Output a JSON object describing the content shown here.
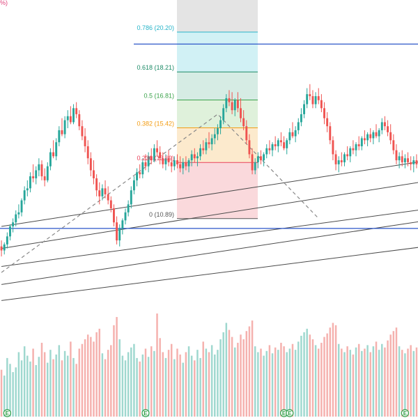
{
  "corner_label": "%)",
  "colors": {
    "up": "#26a69a",
    "down": "#ef5350",
    "up_volume": "#9fd8cf",
    "down_volume": "#f5b1ae",
    "hline": "#2a54c8",
    "channel": "#4a4a4a",
    "dashed": "#888888",
    "earnings": "#2e9e45"
  },
  "chart_data": {
    "type": "candlestick",
    "price_range": [
      6.5,
      21.8
    ],
    "grid": false,
    "fibonacci": {
      "levels": [
        {
          "ratio": "0.786",
          "price": 20.2,
          "label": "0.786 (20.20)",
          "color": "#26b4c8",
          "fill": "#c9eef3"
        },
        {
          "ratio": "0.618",
          "price": 18.21,
          "label": "0.618 (18.21)",
          "color": "#1b8a66",
          "fill": "#cfe9df"
        },
        {
          "ratio": "0.5",
          "price": 16.81,
          "label": "0.5 (16.81)",
          "color": "#3aa24a",
          "fill": "#d9eed5"
        },
        {
          "ratio": "0.382",
          "price": 15.42,
          "label": "0.382 (15.42)",
          "color": "#f39c12",
          "fill": "#fbe6c4"
        },
        {
          "ratio": "0.236",
          "price": 13.69,
          "label": "0.236 (13.69)",
          "color": "#e8415a",
          "fill": "#f9d2d6"
        },
        {
          "ratio": "0",
          "price": 10.89,
          "label": "0 (10.89)",
          "color": "#555555",
          "fill": ""
        }
      ],
      "top_fill_price": 21.8
    },
    "horizontal_lines": [
      {
        "price": 19.6,
        "color": "#2a54c8"
      },
      {
        "price": 10.4,
        "color": "#2a54c8"
      }
    ],
    "dashed_path_prices": [
      {
        "bar": 0,
        "price": 8.2
      },
      {
        "bar": 75,
        "price": 16.1
      },
      {
        "bar": 110,
        "price": 10.9
      }
    ],
    "channel_lines": [
      {
        "bar_start": 0,
        "price_start": 10.5,
        "bar_end": 180,
        "price_end": 14.5
      },
      {
        "bar_start": 0,
        "price_start": 9.4,
        "bar_end": 180,
        "price_end": 13.5
      },
      {
        "bar_start": 0,
        "price_start": 8.5,
        "bar_end": 180,
        "price_end": 12.0
      },
      {
        "bar_start": 0,
        "price_start": 7.6,
        "bar_end": 180,
        "price_end": 11.5
      },
      {
        "bar_start": 0,
        "price_start": 6.8,
        "bar_end": 180,
        "price_end": 10.1
      }
    ],
    "earnings_bars": [
      2,
      50,
      98,
      100,
      140,
      178
    ],
    "earnings_label": "E",
    "ohlcv": [
      [
        9.5,
        9.8,
        9.0,
        9.3,
        40
      ],
      [
        9.3,
        9.7,
        9.1,
        9.6,
        35
      ],
      [
        9.6,
        10.2,
        9.4,
        10.0,
        50
      ],
      [
        10.0,
        10.6,
        9.8,
        10.5,
        45
      ],
      [
        10.5,
        10.9,
        10.2,
        10.7,
        38
      ],
      [
        10.7,
        11.3,
        10.5,
        11.1,
        42
      ],
      [
        11.1,
        11.6,
        10.9,
        11.2,
        55
      ],
      [
        11.2,
        11.9,
        11.0,
        11.8,
        48
      ],
      [
        11.8,
        12.5,
        11.6,
        12.3,
        60
      ],
      [
        12.3,
        12.8,
        12.0,
        12.4,
        52
      ],
      [
        12.4,
        13.2,
        12.2,
        13.0,
        47
      ],
      [
        13.0,
        13.6,
        12.7,
        12.9,
        58
      ],
      [
        12.9,
        13.5,
        12.6,
        13.3,
        44
      ],
      [
        13.3,
        13.9,
        13.0,
        13.6,
        51
      ],
      [
        13.6,
        13.8,
        12.8,
        13.0,
        63
      ],
      [
        13.0,
        13.4,
        12.5,
        12.8,
        55
      ],
      [
        12.8,
        13.7,
        12.7,
        13.5,
        46
      ],
      [
        13.5,
        14.4,
        13.3,
        14.2,
        57
      ],
      [
        14.2,
        14.8,
        13.9,
        14.0,
        49
      ],
      [
        14.0,
        14.9,
        13.8,
        14.7,
        53
      ],
      [
        14.7,
        15.5,
        14.5,
        15.3,
        61
      ],
      [
        15.3,
        15.9,
        15.0,
        15.1,
        48
      ],
      [
        15.1,
        16.0,
        14.9,
        15.8,
        56
      ],
      [
        15.8,
        16.3,
        15.4,
        16.0,
        52
      ],
      [
        16.0,
        16.5,
        15.6,
        15.7,
        64
      ],
      [
        15.7,
        16.6,
        15.6,
        16.4,
        50
      ],
      [
        16.4,
        16.7,
        15.9,
        16.1,
        45
      ],
      [
        16.1,
        16.3,
        15.3,
        15.5,
        58
      ],
      [
        15.5,
        15.8,
        14.8,
        15.0,
        62
      ],
      [
        15.0,
        15.4,
        14.2,
        14.5,
        66
      ],
      [
        14.5,
        14.8,
        13.6,
        13.9,
        70
      ],
      [
        13.9,
        14.2,
        13.0,
        13.3,
        68
      ],
      [
        13.3,
        13.8,
        12.6,
        12.9,
        64
      ],
      [
        12.9,
        13.1,
        12.0,
        12.3,
        72
      ],
      [
        12.3,
        12.7,
        11.6,
        12.0,
        75
      ],
      [
        12.0,
        12.6,
        11.8,
        12.4,
        54
      ],
      [
        12.4,
        12.8,
        11.9,
        12.1,
        49
      ],
      [
        12.1,
        12.5,
        11.6,
        11.8,
        57
      ],
      [
        11.8,
        12.0,
        11.2,
        11.4,
        61
      ],
      [
        11.4,
        11.6,
        10.5,
        10.7,
        78
      ],
      [
        10.7,
        11.0,
        9.6,
        9.8,
        85
      ],
      [
        9.8,
        10.6,
        9.5,
        10.4,
        66
      ],
      [
        10.4,
        10.9,
        10.1,
        10.8,
        52
      ],
      [
        10.8,
        11.4,
        10.6,
        11.2,
        48
      ],
      [
        11.2,
        11.8,
        11.0,
        11.6,
        55
      ],
      [
        11.6,
        12.5,
        11.4,
        12.3,
        59
      ],
      [
        12.3,
        13.0,
        12.1,
        12.8,
        62
      ],
      [
        12.8,
        13.4,
        12.5,
        13.2,
        50
      ],
      [
        13.2,
        13.6,
        12.9,
        13.1,
        47
      ],
      [
        13.1,
        13.9,
        12.9,
        13.7,
        53
      ],
      [
        13.7,
        14.1,
        13.3,
        13.5,
        58
      ],
      [
        13.5,
        14.2,
        13.2,
        14.0,
        51
      ],
      [
        14.0,
        14.4,
        13.6,
        13.8,
        60
      ],
      [
        13.8,
        14.6,
        13.7,
        14.4,
        56
      ],
      [
        14.4,
        14.8,
        14.0,
        14.2,
        88
      ],
      [
        14.2,
        14.5,
        13.6,
        13.9,
        67
      ],
      [
        13.9,
        14.2,
        13.4,
        13.6,
        55
      ],
      [
        13.6,
        14.1,
        13.3,
        13.9,
        50
      ],
      [
        13.9,
        14.3,
        13.5,
        13.7,
        57
      ],
      [
        13.7,
        14.0,
        13.2,
        13.5,
        62
      ],
      [
        13.5,
        14.0,
        13.3,
        13.8,
        49
      ],
      [
        13.8,
        14.1,
        13.4,
        13.6,
        58
      ],
      [
        13.6,
        14.0,
        13.2,
        13.4,
        53
      ],
      [
        13.4,
        13.9,
        13.1,
        13.7,
        46
      ],
      [
        13.7,
        14.0,
        13.3,
        13.5,
        55
      ],
      [
        13.5,
        13.9,
        13.2,
        13.8,
        60
      ],
      [
        13.8,
        14.3,
        13.5,
        14.1,
        52
      ],
      [
        14.1,
        14.4,
        13.7,
        13.9,
        48
      ],
      [
        13.9,
        14.2,
        13.5,
        14.0,
        57
      ],
      [
        14.0,
        14.6,
        13.8,
        14.4,
        50
      ],
      [
        14.4,
        14.8,
        14.1,
        14.3,
        64
      ],
      [
        14.3,
        14.9,
        14.1,
        14.7,
        58
      ],
      [
        14.7,
        15.2,
        14.4,
        14.6,
        55
      ],
      [
        14.6,
        15.1,
        14.3,
        14.9,
        61
      ],
      [
        14.9,
        15.4,
        14.6,
        15.1,
        53
      ],
      [
        15.1,
        15.6,
        14.8,
        15.4,
        57
      ],
      [
        15.4,
        16.0,
        15.1,
        15.8,
        66
      ],
      [
        15.8,
        16.6,
        15.6,
        16.4,
        72
      ],
      [
        16.4,
        17.1,
        16.2,
        16.9,
        80
      ],
      [
        16.9,
        17.3,
        16.5,
        16.7,
        74
      ],
      [
        16.7,
        17.2,
        16.1,
        16.3,
        68
      ],
      [
        16.3,
        16.9,
        16.0,
        16.8,
        59
      ],
      [
        16.8,
        17.2,
        16.2,
        16.4,
        63
      ],
      [
        16.4,
        16.9,
        15.7,
        15.9,
        70
      ],
      [
        15.9,
        16.3,
        15.3,
        15.5,
        66
      ],
      [
        15.5,
        15.8,
        14.6,
        14.8,
        73
      ],
      [
        14.8,
        15.1,
        13.9,
        14.1,
        77
      ],
      [
        14.1,
        14.4,
        13.1,
        13.3,
        82
      ],
      [
        13.3,
        13.9,
        13.1,
        13.7,
        60
      ],
      [
        13.7,
        14.2,
        13.4,
        14.0,
        55
      ],
      [
        14.0,
        14.3,
        13.6,
        13.8,
        58
      ],
      [
        13.8,
        14.2,
        13.5,
        14.1,
        52
      ],
      [
        14.1,
        14.6,
        13.9,
        14.4,
        56
      ],
      [
        14.4,
        14.8,
        14.1,
        14.3,
        61
      ],
      [
        14.3,
        14.7,
        14.0,
        14.6,
        54
      ],
      [
        14.6,
        15.0,
        14.3,
        14.5,
        59
      ],
      [
        14.5,
        14.9,
        14.2,
        14.8,
        57
      ],
      [
        14.8,
        15.2,
        14.5,
        14.7,
        63
      ],
      [
        14.7,
        15.0,
        14.3,
        14.4,
        60
      ],
      [
        14.4,
        14.9,
        14.1,
        14.8,
        55
      ],
      [
        14.8,
        15.4,
        14.6,
        15.2,
        58
      ],
      [
        15.2,
        15.7,
        14.9,
        15.0,
        62
      ],
      [
        15.0,
        15.5,
        14.7,
        15.3,
        57
      ],
      [
        15.3,
        15.9,
        15.1,
        15.7,
        64
      ],
      [
        15.7,
        16.4,
        15.5,
        16.1,
        69
      ],
      [
        16.1,
        16.8,
        15.9,
        16.6,
        72
      ],
      [
        16.6,
        17.4,
        16.4,
        17.1,
        75
      ],
      [
        17.1,
        17.6,
        16.8,
        17.0,
        70
      ],
      [
        17.0,
        17.3,
        16.4,
        16.6,
        66
      ],
      [
        16.6,
        17.2,
        16.4,
        17.0,
        61
      ],
      [
        17.0,
        17.4,
        16.6,
        16.8,
        58
      ],
      [
        16.8,
        17.1,
        16.2,
        16.4,
        63
      ],
      [
        16.4,
        16.7,
        15.6,
        15.9,
        68
      ],
      [
        15.9,
        16.2,
        15.2,
        15.5,
        71
      ],
      [
        15.5,
        15.7,
        14.6,
        14.8,
        76
      ],
      [
        14.8,
        15.0,
        13.8,
        14.1,
        80
      ],
      [
        14.1,
        14.3,
        13.3,
        13.6,
        78
      ],
      [
        13.6,
        14.0,
        13.2,
        13.8,
        62
      ],
      [
        13.8,
        14.2,
        13.5,
        13.7,
        58
      ],
      [
        13.7,
        14.2,
        13.5,
        14.1,
        55
      ],
      [
        14.1,
        14.5,
        13.8,
        14.0,
        60
      ],
      [
        14.0,
        14.5,
        13.7,
        14.4,
        57
      ],
      [
        14.4,
        14.8,
        14.1,
        14.3,
        53
      ],
      [
        14.3,
        14.7,
        14.0,
        14.6,
        59
      ],
      [
        14.6,
        15.0,
        14.3,
        14.5,
        62
      ],
      [
        14.5,
        15.0,
        14.3,
        14.9,
        56
      ],
      [
        14.9,
        15.3,
        14.6,
        14.8,
        58
      ],
      [
        14.8,
        15.2,
        14.5,
        15.1,
        61
      ],
      [
        15.1,
        15.4,
        14.7,
        14.9,
        55
      ],
      [
        14.9,
        15.3,
        14.6,
        15.2,
        60
      ],
      [
        15.2,
        15.6,
        14.9,
        15.0,
        64
      ],
      [
        15.0,
        15.4,
        14.7,
        15.3,
        57
      ],
      [
        15.3,
        15.9,
        15.1,
        15.7,
        62
      ],
      [
        15.7,
        16.0,
        15.3,
        15.5,
        59
      ],
      [
        15.5,
        15.8,
        15.0,
        15.2,
        65
      ],
      [
        15.2,
        15.6,
        14.6,
        14.8,
        70
      ],
      [
        14.8,
        15.1,
        14.1,
        14.3,
        73
      ],
      [
        14.3,
        14.6,
        13.6,
        13.8,
        76
      ],
      [
        13.8,
        14.2,
        13.4,
        14.0,
        60
      ],
      [
        14.0,
        14.3,
        13.5,
        13.7,
        57
      ],
      [
        13.7,
        14.1,
        13.4,
        13.9,
        54
      ],
      [
        13.9,
        14.2,
        13.5,
        13.7,
        58
      ],
      [
        13.7,
        14.0,
        13.3,
        13.6,
        61
      ],
      [
        13.6,
        14.0,
        13.2,
        13.8,
        56
      ],
      [
        13.8,
        14.1,
        13.4,
        13.6,
        59
      ]
    ]
  }
}
